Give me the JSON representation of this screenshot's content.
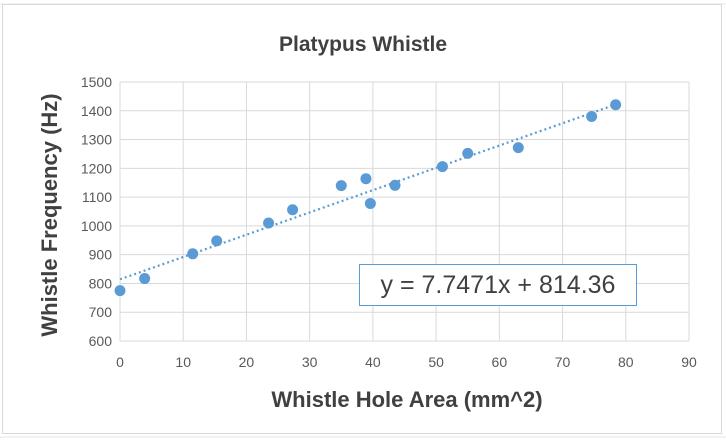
{
  "colors": {
    "marker": "#5b9bd5",
    "trendline": "#5b9bd5",
    "gridline": "#d9d9d9",
    "text": "#404040"
  },
  "chart_data": {
    "type": "scatter",
    "title": "Platypus Whistle",
    "xlabel": "Whistle Hole Area (mm^2)",
    "ylabel": "Whistle Frequency (Hz)",
    "xlim": [
      0,
      90
    ],
    "ylim": [
      600,
      1500
    ],
    "x_ticks": [
      0,
      10,
      20,
      30,
      40,
      50,
      60,
      70,
      80,
      90
    ],
    "y_ticks": [
      600,
      700,
      800,
      900,
      1000,
      1100,
      1200,
      1300,
      1400,
      1500
    ],
    "grid": true,
    "legend": "none",
    "points": [
      {
        "x": 0,
        "y": 775
      },
      {
        "x": 3.9,
        "y": 817
      },
      {
        "x": 11.5,
        "y": 903
      },
      {
        "x": 15.3,
        "y": 948
      },
      {
        "x": 23.5,
        "y": 1010
      },
      {
        "x": 27.3,
        "y": 1056
      },
      {
        "x": 35.0,
        "y": 1140
      },
      {
        "x": 38.9,
        "y": 1164
      },
      {
        "x": 39.6,
        "y": 1078
      },
      {
        "x": 43.5,
        "y": 1141
      },
      {
        "x": 51.0,
        "y": 1206
      },
      {
        "x": 55.0,
        "y": 1252
      },
      {
        "x": 63.0,
        "y": 1272
      },
      {
        "x": 74.6,
        "y": 1380
      },
      {
        "x": 78.4,
        "y": 1421
      }
    ],
    "trendline": {
      "type": "linear",
      "slope": 7.7471,
      "intercept": 814.36,
      "x_range": [
        0,
        78.4
      ],
      "equation_label": "y = 7.7471x + 814.36"
    }
  }
}
